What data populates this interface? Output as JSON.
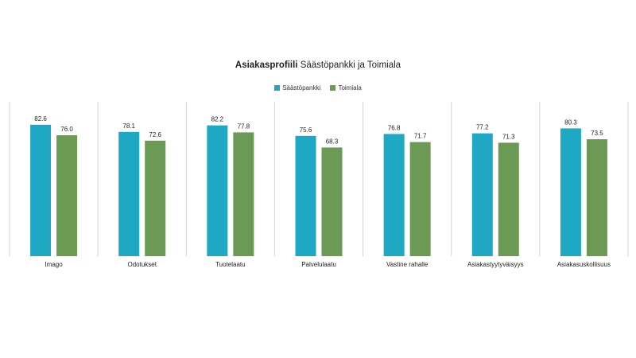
{
  "chart_data": {
    "type": "bar",
    "title": "Asiakasprofiili",
    "subtitle": "Säästöpankki ja Toimiala",
    "categories": [
      "Imago",
      "Odotukset",
      "Tuotelaatu",
      "Palvelulaatu",
      "Vastine rahalle",
      "Asiakastyytyväisyys",
      "Asiakasuskollisuus"
    ],
    "series": [
      {
        "name": "Säästöpankki",
        "color": "#1fa8c4",
        "values": [
          82.6,
          78.1,
          82.2,
          75.6,
          76.8,
          77.2,
          80.3
        ]
      },
      {
        "name": "Toimiala",
        "color": "#6b9a55",
        "values": [
          76.0,
          72.6,
          77.8,
          68.3,
          71.7,
          71.3,
          73.5
        ]
      }
    ],
    "value_labels": {
      "Säästöpankki": [
        "82.6",
        "78.1",
        "82.2",
        "75.6",
        "76.8",
        "77.2",
        "80.3"
      ],
      "Toimiala": [
        "76.0",
        "72.6",
        "77.8",
        "68.3",
        "71.7",
        "71.3",
        "73.5"
      ]
    },
    "ylim": [
      0,
      100
    ],
    "legend_position": "top-center",
    "grid": false
  }
}
